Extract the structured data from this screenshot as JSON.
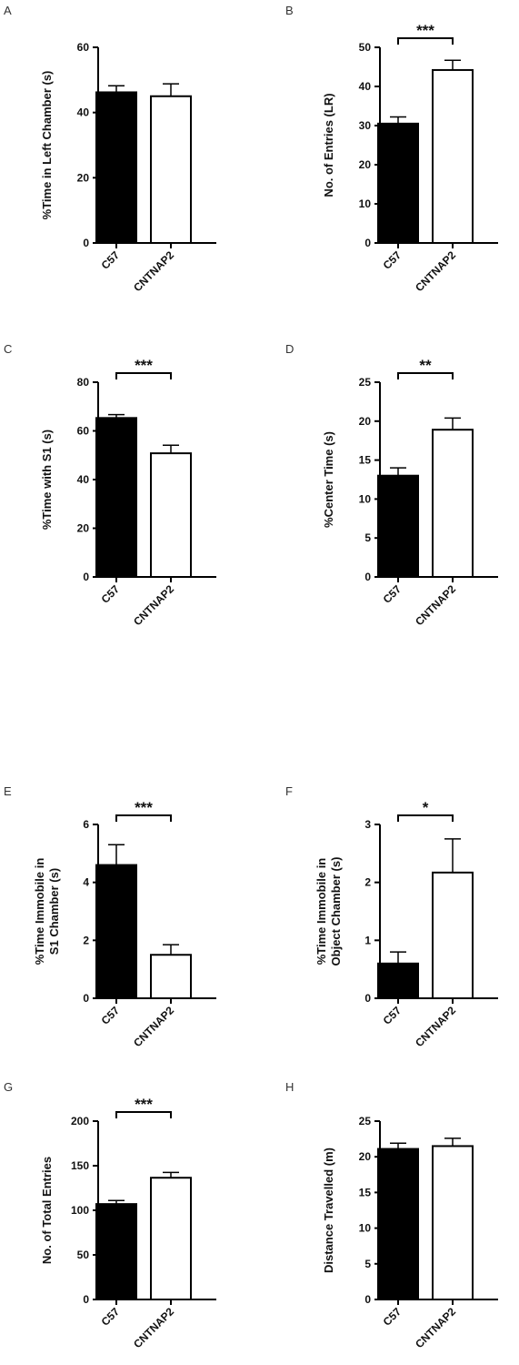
{
  "chart_data": [
    {
      "panel": "A",
      "type": "bar",
      "ylabel_lines": [
        "%Time in Left Chamber (s)"
      ],
      "ylim": [
        0,
        60
      ],
      "yticks": [
        0,
        20,
        40,
        60
      ],
      "categories": [
        "C57",
        "CNTNAP2"
      ],
      "values": [
        46.2,
        45.0
      ],
      "errors": [
        2.0,
        3.8
      ],
      "fill_colors": [
        "#000000",
        "#ffffff"
      ],
      "significance": ""
    },
    {
      "panel": "B",
      "type": "bar",
      "ylabel_lines": [
        "No. of Entries (LR)"
      ],
      "ylim": [
        0,
        50
      ],
      "yticks": [
        0,
        10,
        20,
        30,
        40,
        50
      ],
      "categories": [
        "C57",
        "CNTNAP2"
      ],
      "values": [
        30.5,
        44.2
      ],
      "errors": [
        1.7,
        2.5
      ],
      "fill_colors": [
        "#000000",
        "#ffffff"
      ],
      "significance": "***"
    },
    {
      "panel": "C",
      "type": "bar",
      "ylabel_lines": [
        "%Time with S1 (s)"
      ],
      "ylim": [
        0,
        80
      ],
      "yticks": [
        0,
        20,
        40,
        60,
        80
      ],
      "categories": [
        "C57",
        "CNTNAP2"
      ],
      "values": [
        65.3,
        50.8
      ],
      "errors": [
        1.4,
        3.3
      ],
      "fill_colors": [
        "#000000",
        "#ffffff"
      ],
      "significance": "***"
    },
    {
      "panel": "D",
      "type": "bar",
      "ylabel_lines": [
        "%Center Time (s)"
      ],
      "ylim": [
        0,
        25
      ],
      "yticks": [
        0,
        5,
        10,
        15,
        20,
        25
      ],
      "categories": [
        "C57",
        "CNTNAP2"
      ],
      "values": [
        13.0,
        18.9
      ],
      "errors": [
        1.0,
        1.5
      ],
      "fill_colors": [
        "#000000",
        "#ffffff"
      ],
      "significance": "**"
    },
    {
      "panel": "E",
      "type": "bar",
      "ylabel_lines": [
        "%Time Immobile in",
        "S1 Chamber (s)"
      ],
      "ylim": [
        0,
        6
      ],
      "yticks": [
        0,
        2,
        4,
        6
      ],
      "categories": [
        "C57",
        "CNTNAP2"
      ],
      "values": [
        4.6,
        1.5
      ],
      "errors": [
        0.7,
        0.35
      ],
      "fill_colors": [
        "#000000",
        "#ffffff"
      ],
      "significance": "***"
    },
    {
      "panel": "F",
      "type": "bar",
      "ylabel_lines": [
        "%Time Immobile in",
        "Object Chamber (s)"
      ],
      "ylim": [
        0,
        3
      ],
      "yticks": [
        0,
        1,
        2,
        3
      ],
      "categories": [
        "C57",
        "CNTNAP2"
      ],
      "values": [
        0.6,
        2.17
      ],
      "errors": [
        0.2,
        0.58
      ],
      "fill_colors": [
        "#000000",
        "#ffffff"
      ],
      "significance": "*"
    },
    {
      "panel": "G",
      "type": "bar",
      "ylabel_lines": [
        "No. of Total Entries"
      ],
      "ylim": [
        0,
        200
      ],
      "yticks": [
        0,
        50,
        100,
        150,
        200
      ],
      "categories": [
        "C57",
        "CNTNAP2"
      ],
      "values": [
        107,
        136.5
      ],
      "errors": [
        4,
        6
      ],
      "fill_colors": [
        "#000000",
        "#ffffff"
      ],
      "significance": "***"
    },
    {
      "panel": "H",
      "type": "bar",
      "ylabel_lines": [
        "Distance Travelled (m)"
      ],
      "ylim": [
        0,
        25
      ],
      "yticks": [
        0,
        5,
        10,
        15,
        20,
        25
      ],
      "categories": [
        "C57",
        "CNTNAP2"
      ],
      "values": [
        21.1,
        21.5
      ],
      "errors": [
        0.8,
        1.1
      ],
      "fill_colors": [
        "#000000",
        "#ffffff"
      ],
      "significance": ""
    }
  ]
}
